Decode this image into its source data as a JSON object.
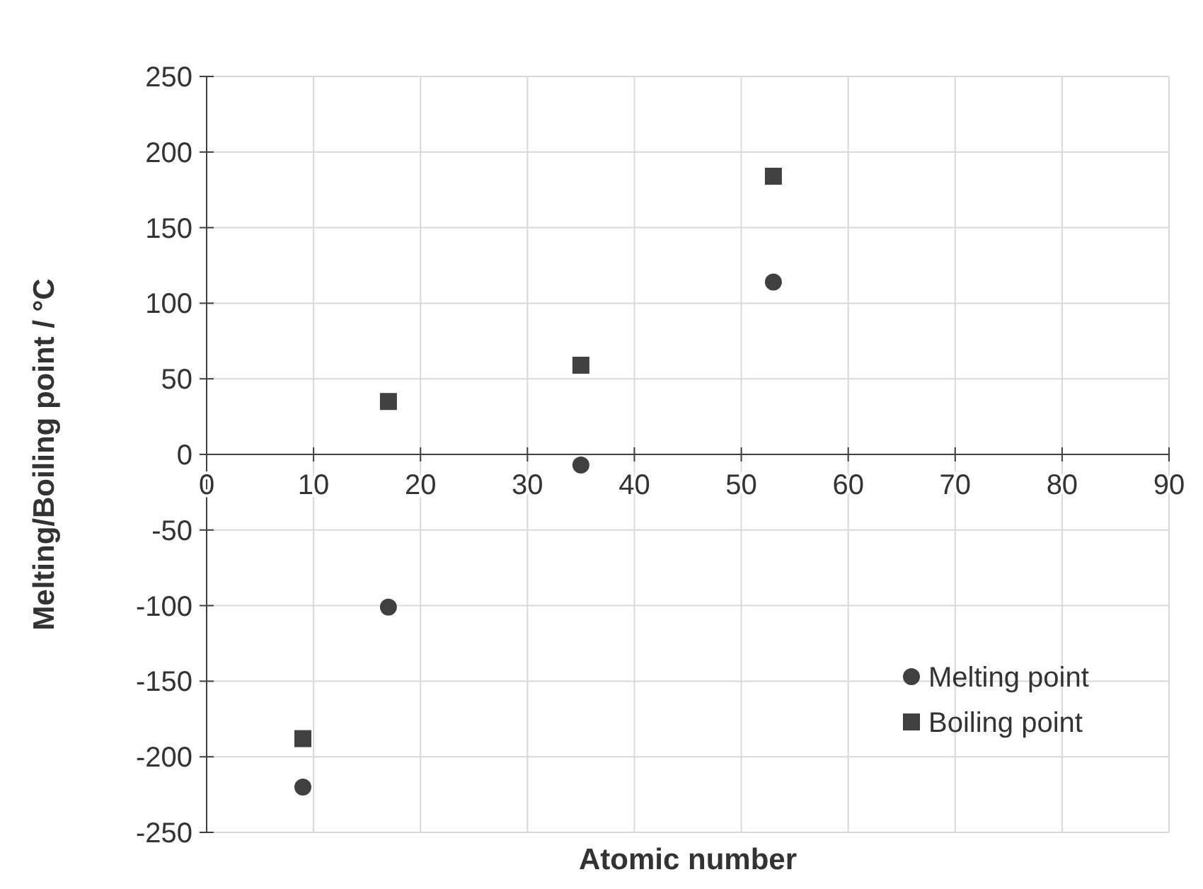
{
  "chart_data": {
    "type": "scatter",
    "xlabel": "Atomic number",
    "ylabel": "Melting/Boiling point / °C",
    "xlim": [
      0,
      90
    ],
    "xticks": [
      0,
      10,
      20,
      30,
      40,
      50,
      60,
      70,
      80,
      90
    ],
    "ylim": [
      -250,
      250
    ],
    "yticks": [
      -250,
      -200,
      -150,
      -100,
      -50,
      0,
      50,
      100,
      150,
      200,
      250
    ],
    "grid": true,
    "legend": "bottom right",
    "series": [
      {
        "name": "Melting point",
        "color": "#404040",
        "marker": "circle",
        "x": [
          9,
          17,
          35,
          53
        ],
        "values": [
          -220,
          -101,
          -7,
          114
        ]
      },
      {
        "name": "Boiling point",
        "color": "#404040",
        "marker": "square",
        "x": [
          9,
          17,
          35,
          53
        ],
        "values": [
          -188,
          35,
          59,
          184
        ]
      }
    ]
  }
}
